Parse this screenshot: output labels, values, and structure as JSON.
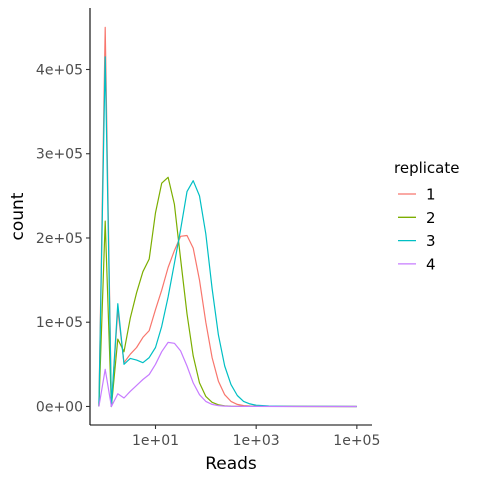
{
  "chart_data": {
    "type": "line",
    "xlabel": "Reads",
    "ylabel": "count",
    "x_scale": "log10",
    "x_ticks": [
      {
        "value": 10,
        "label": "1e+01"
      },
      {
        "value": 1000,
        "label": "1e+03"
      },
      {
        "value": 100000,
        "label": "1e+05"
      }
    ],
    "y_ticks": [
      {
        "value": 0,
        "label": "0e+00"
      },
      {
        "value": 100000,
        "label": "1e+05"
      },
      {
        "value": 200000,
        "label": "2e+05"
      },
      {
        "value": 300000,
        "label": "3e+05"
      },
      {
        "value": 400000,
        "label": "4e+05"
      }
    ],
    "xlim": [
      0.5,
      200000
    ],
    "ylim": [
      -22000,
      473000
    ],
    "grid": false,
    "legend": {
      "title": "replicate",
      "placement": "right"
    },
    "series": [
      {
        "name": "1",
        "color": "#F8766D",
        "points": [
          [
            0.75,
            0
          ],
          [
            1,
            450000
          ],
          [
            1.33,
            0
          ],
          [
            1.78,
            115000
          ],
          [
            2.37,
            52000
          ],
          [
            3.16,
            62000
          ],
          [
            4.22,
            70000
          ],
          [
            5.62,
            82000
          ],
          [
            7.5,
            90000
          ],
          [
            10,
            115000
          ],
          [
            13.3,
            138000
          ],
          [
            17.8,
            165000
          ],
          [
            23.7,
            185000
          ],
          [
            31.6,
            202000
          ],
          [
            42.2,
            203000
          ],
          [
            56.2,
            188000
          ],
          [
            75,
            150000
          ],
          [
            100,
            100000
          ],
          [
            133,
            58000
          ],
          [
            178,
            30000
          ],
          [
            237,
            14000
          ],
          [
            316,
            6000
          ],
          [
            422,
            2500
          ],
          [
            562,
            1000
          ],
          [
            750,
            500
          ],
          [
            1000,
            300
          ],
          [
            1780,
            150
          ],
          [
            3160,
            100
          ],
          [
            5620,
            50
          ],
          [
            10000,
            30
          ],
          [
            31600,
            10
          ],
          [
            100000,
            0
          ]
        ]
      },
      {
        "name": "2",
        "color": "#7CAE00",
        "points": [
          [
            0.75,
            0
          ],
          [
            1,
            220000
          ],
          [
            1.33,
            0
          ],
          [
            1.78,
            80000
          ],
          [
            2.37,
            65000
          ],
          [
            3.16,
            105000
          ],
          [
            4.22,
            135000
          ],
          [
            5.62,
            160000
          ],
          [
            7.5,
            175000
          ],
          [
            10,
            230000
          ],
          [
            13.3,
            265000
          ],
          [
            17.8,
            272000
          ],
          [
            23.7,
            240000
          ],
          [
            31.6,
            175000
          ],
          [
            42.2,
            110000
          ],
          [
            56.2,
            60000
          ],
          [
            75,
            28000
          ],
          [
            100,
            12000
          ],
          [
            133,
            5000
          ],
          [
            178,
            2000
          ],
          [
            237,
            800
          ],
          [
            316,
            300
          ],
          [
            562,
            100
          ],
          [
            1000,
            50
          ],
          [
            3160,
            20
          ],
          [
            10000,
            10
          ],
          [
            100000,
            0
          ]
        ]
      },
      {
        "name": "3",
        "color": "#00BFC4",
        "points": [
          [
            0.75,
            0
          ],
          [
            1,
            415000
          ],
          [
            1.33,
            0
          ],
          [
            1.78,
            122000
          ],
          [
            2.37,
            50000
          ],
          [
            3.16,
            57000
          ],
          [
            4.22,
            55000
          ],
          [
            5.62,
            52000
          ],
          [
            7.5,
            58000
          ],
          [
            10,
            70000
          ],
          [
            13.3,
            95000
          ],
          [
            17.8,
            130000
          ],
          [
            23.7,
            170000
          ],
          [
            31.6,
            210000
          ],
          [
            42.2,
            255000
          ],
          [
            56.2,
            268000
          ],
          [
            75,
            250000
          ],
          [
            100,
            205000
          ],
          [
            133,
            140000
          ],
          [
            178,
            85000
          ],
          [
            237,
            48000
          ],
          [
            316,
            26000
          ],
          [
            422,
            13000
          ],
          [
            562,
            6000
          ],
          [
            750,
            3000
          ],
          [
            1000,
            1500
          ],
          [
            1780,
            600
          ],
          [
            3160,
            300
          ],
          [
            5620,
            150
          ],
          [
            10000,
            80
          ],
          [
            31600,
            30
          ],
          [
            100000,
            10
          ]
        ]
      },
      {
        "name": "4",
        "color": "#C77CFF",
        "points": [
          [
            0.75,
            0
          ],
          [
            1,
            44000
          ],
          [
            1.33,
            0
          ],
          [
            1.78,
            15000
          ],
          [
            2.37,
            10000
          ],
          [
            3.16,
            18000
          ],
          [
            4.22,
            25000
          ],
          [
            5.62,
            32000
          ],
          [
            7.5,
            38000
          ],
          [
            10,
            50000
          ],
          [
            13.3,
            65000
          ],
          [
            17.8,
            76000
          ],
          [
            23.7,
            75000
          ],
          [
            31.6,
            66000
          ],
          [
            42.2,
            48000
          ],
          [
            56.2,
            28000
          ],
          [
            75,
            14000
          ],
          [
            100,
            6000
          ],
          [
            133,
            2500
          ],
          [
            178,
            1000
          ],
          [
            237,
            400
          ],
          [
            316,
            150
          ],
          [
            562,
            50
          ],
          [
            1000,
            20
          ],
          [
            3160,
            10
          ],
          [
            10000,
            5
          ],
          [
            100000,
            0
          ]
        ]
      }
    ]
  }
}
